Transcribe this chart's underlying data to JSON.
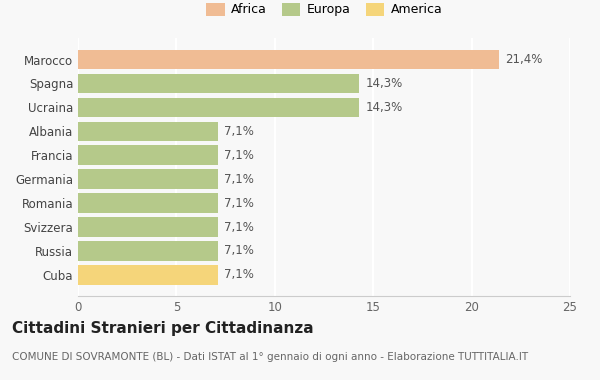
{
  "categories": [
    "Cuba",
    "Russia",
    "Svizzera",
    "Romania",
    "Germania",
    "Francia",
    "Albania",
    "Ucraina",
    "Spagna",
    "Marocco"
  ],
  "values": [
    7.1,
    7.1,
    7.1,
    7.1,
    7.1,
    7.1,
    7.1,
    14.3,
    14.3,
    21.4
  ],
  "labels": [
    "7,1%",
    "7,1%",
    "7,1%",
    "7,1%",
    "7,1%",
    "7,1%",
    "7,1%",
    "14,3%",
    "14,3%",
    "21,4%"
  ],
  "colors": [
    "#f5d57a",
    "#b5c98a",
    "#b5c98a",
    "#b5c98a",
    "#b5c98a",
    "#b5c98a",
    "#b5c98a",
    "#b5c98a",
    "#b5c98a",
    "#f0bc94"
  ],
  "legend": [
    {
      "label": "Africa",
      "color": "#f0bc94"
    },
    {
      "label": "Europa",
      "color": "#b5c98a"
    },
    {
      "label": "America",
      "color": "#f5d57a"
    }
  ],
  "xlim": [
    0,
    25
  ],
  "xticks": [
    0,
    5,
    10,
    15,
    20,
    25
  ],
  "title": "Cittadini Stranieri per Cittadinanza",
  "subtitle": "COMUNE DI SOVRAMONTE (BL) - Dati ISTAT al 1° gennaio di ogni anno - Elaborazione TUTTITALIA.IT",
  "background_color": "#f8f8f8",
  "bar_height": 0.82,
  "label_fontsize": 8.5,
  "title_fontsize": 11,
  "subtitle_fontsize": 7.5
}
